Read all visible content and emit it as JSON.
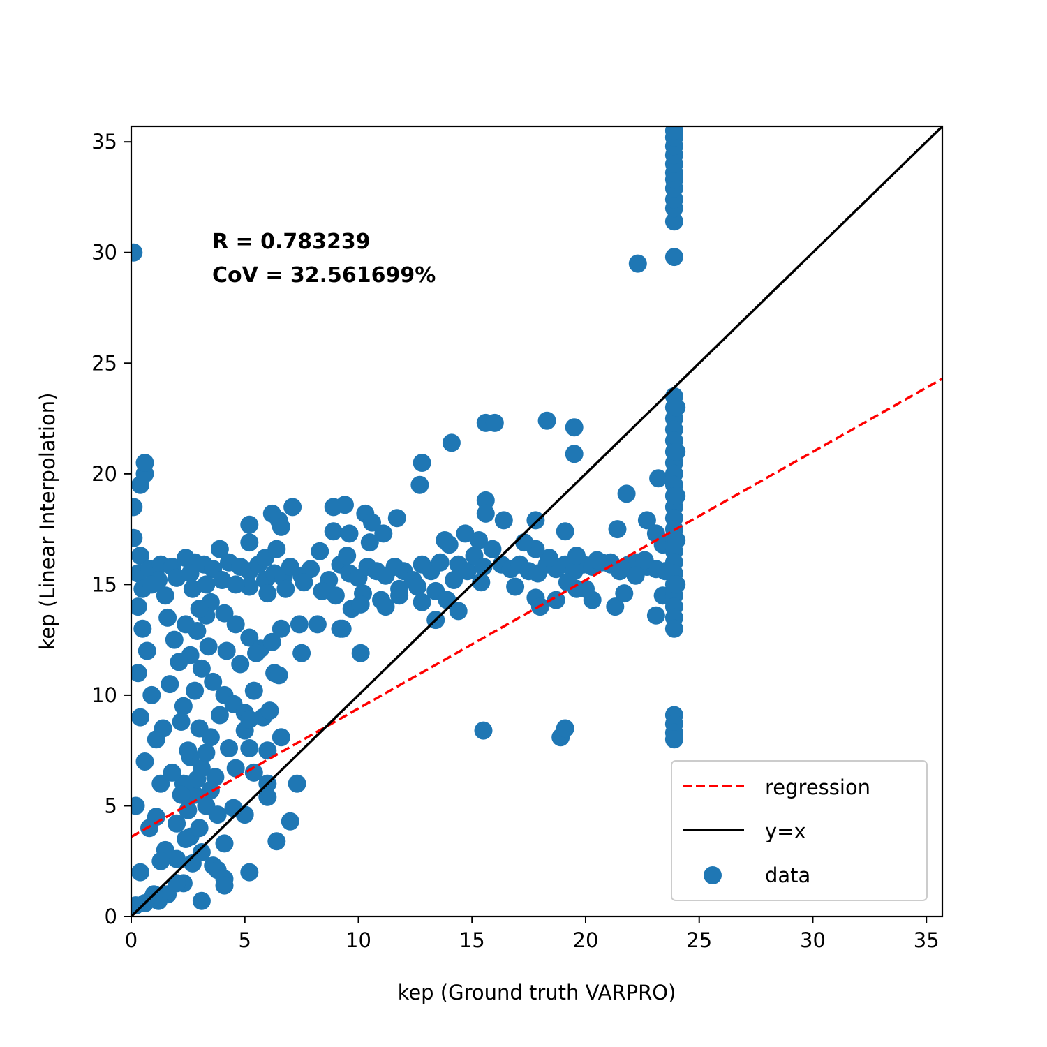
{
  "chart_data": {
    "type": "scatter",
    "title": "",
    "xlabel": "kep (Ground truth VARPRO)",
    "ylabel": "kep (Linear Interpolation)",
    "xlim": [
      0,
      35.7
    ],
    "ylim": [
      0,
      35.7
    ],
    "xticks": [
      0,
      5,
      10,
      15,
      20,
      25,
      30,
      35
    ],
    "yticks": [
      0,
      5,
      10,
      15,
      20,
      25,
      30,
      35
    ],
    "grid": false,
    "annotations": [
      "R = 0.783239",
      "CoV = 32.561699%"
    ],
    "legend": {
      "position": "lower right",
      "entries": [
        {
          "label": "regression",
          "style": "dashed-line",
          "color": "#ff0000"
        },
        {
          "label": "y=x",
          "style": "solid-line",
          "color": "#000000"
        },
        {
          "label": "data",
          "style": "marker",
          "color": "#1f77b4"
        }
      ]
    },
    "lines": [
      {
        "name": "regression",
        "color": "#ff0000",
        "dashed": true,
        "x": [
          0,
          35.7
        ],
        "y": [
          3.6,
          24.3
        ]
      },
      {
        "name": "y=x",
        "color": "#000000",
        "dashed": false,
        "x": [
          0,
          35.7
        ],
        "y": [
          0,
          35.7
        ]
      }
    ],
    "series": [
      {
        "name": "data",
        "color": "#1f77b4",
        "points": [
          [
            0.1,
            30.0
          ],
          [
            0.1,
            18.5
          ],
          [
            0.1,
            17.1
          ],
          [
            0.4,
            19.5
          ],
          [
            0.6,
            20.0
          ],
          [
            0.6,
            20.5
          ],
          [
            0.4,
            16.3
          ],
          [
            0.3,
            15.5
          ],
          [
            0.5,
            14.8
          ],
          [
            0.8,
            15.7
          ],
          [
            1.3,
            15.9
          ],
          [
            1.8,
            15.8
          ],
          [
            2.4,
            16.2
          ],
          [
            2.8,
            16.0
          ],
          [
            3.2,
            15.9
          ],
          [
            3.6,
            15.7
          ],
          [
            3.9,
            16.6
          ],
          [
            4.3,
            16.0
          ],
          [
            4.8,
            15.8
          ],
          [
            5.2,
            15.6
          ],
          [
            5.6,
            15.9
          ],
          [
            5.9,
            15.2
          ],
          [
            6.3,
            15.5
          ],
          [
            6.7,
            15.3
          ],
          [
            7.0,
            15.8
          ],
          [
            7.5,
            15.4
          ],
          [
            7.9,
            15.7
          ],
          [
            8.3,
            16.5
          ],
          [
            8.7,
            15.2
          ],
          [
            9.2,
            15.9
          ],
          [
            9.6,
            15.5
          ],
          [
            10.0,
            15.3
          ],
          [
            10.4,
            15.8
          ],
          [
            10.8,
            15.6
          ],
          [
            11.2,
            15.4
          ],
          [
            11.6,
            15.8
          ],
          [
            12.0,
            15.6
          ],
          [
            12.4,
            15.2
          ],
          [
            12.8,
            15.9
          ],
          [
            13.2,
            15.6
          ],
          [
            13.6,
            16.0
          ],
          [
            14.0,
            16.8
          ],
          [
            14.4,
            15.9
          ],
          [
            14.8,
            15.6
          ],
          [
            15.1,
            16.3
          ],
          [
            15.5,
            15.8
          ],
          [
            15.9,
            16.6
          ],
          [
            16.3,
            15.9
          ],
          [
            16.7,
            15.7
          ],
          [
            17.1,
            15.9
          ],
          [
            17.5,
            15.6
          ],
          [
            17.9,
            15.5
          ],
          [
            18.3,
            15.9
          ],
          [
            18.7,
            15.7
          ],
          [
            19.1,
            15.9
          ],
          [
            19.5,
            15.6
          ],
          [
            19.9,
            15.9
          ],
          [
            20.3,
            15.8
          ],
          [
            20.7,
            16.0
          ],
          [
            21.1,
            15.9
          ],
          [
            21.5,
            15.6
          ],
          [
            21.9,
            15.9
          ],
          [
            22.3,
            16.0
          ],
          [
            22.7,
            15.8
          ],
          [
            23.1,
            15.7
          ],
          [
            23.5,
            15.6
          ],
          [
            5.2,
            14.9
          ],
          [
            6.0,
            14.6
          ],
          [
            6.8,
            14.8
          ],
          [
            7.6,
            15.1
          ],
          [
            8.4,
            14.7
          ],
          [
            9.0,
            14.5
          ],
          [
            10.2,
            14.6
          ],
          [
            11.0,
            14.3
          ],
          [
            11.8,
            14.5
          ],
          [
            12.6,
            14.9
          ],
          [
            13.4,
            14.7
          ],
          [
            14.2,
            15.2
          ],
          [
            3.5,
            14.2
          ],
          [
            4.1,
            13.7
          ],
          [
            4.6,
            13.2
          ],
          [
            5.2,
            12.6
          ],
          [
            5.7,
            12.1
          ],
          [
            6.2,
            12.4
          ],
          [
            6.6,
            13.0
          ],
          [
            7.4,
            13.2
          ],
          [
            3.3,
            13.6
          ],
          [
            2.9,
            12.9
          ],
          [
            2.6,
            11.8
          ],
          [
            3.1,
            11.2
          ],
          [
            3.6,
            10.6
          ],
          [
            4.1,
            10.0
          ],
          [
            4.5,
            9.6
          ],
          [
            5.0,
            9.2
          ],
          [
            5.4,
            10.2
          ],
          [
            5.8,
            9.0
          ],
          [
            6.1,
            9.3
          ],
          [
            4.2,
            12.0
          ],
          [
            4.8,
            11.4
          ],
          [
            5.5,
            11.9
          ],
          [
            6.3,
            11.0
          ],
          [
            6.5,
            10.9
          ],
          [
            7.5,
            11.9
          ],
          [
            9.3,
            13.0
          ],
          [
            10.1,
            11.9
          ],
          [
            3.0,
            8.5
          ],
          [
            3.5,
            8.1
          ],
          [
            4.3,
            7.6
          ],
          [
            5.0,
            8.4
          ],
          [
            5.2,
            8.9
          ],
          [
            5.2,
            7.6
          ],
          [
            6.0,
            7.5
          ],
          [
            6.6,
            8.1
          ],
          [
            2.6,
            7.2
          ],
          [
            3.1,
            6.7
          ],
          [
            3.7,
            6.3
          ],
          [
            4.6,
            6.7
          ],
          [
            5.4,
            6.5
          ],
          [
            6.0,
            6.0
          ],
          [
            6.0,
            5.4
          ],
          [
            7.3,
            6.0
          ],
          [
            2.3,
            6.0
          ],
          [
            2.8,
            5.5
          ],
          [
            3.3,
            5.0
          ],
          [
            3.8,
            4.6
          ],
          [
            4.5,
            4.9
          ],
          [
            5.0,
            4.6
          ],
          [
            7.0,
            4.3
          ],
          [
            6.4,
            3.4
          ],
          [
            4.1,
            3.3
          ],
          [
            2.0,
            4.2
          ],
          [
            2.6,
            3.6
          ],
          [
            3.1,
            2.9
          ],
          [
            3.6,
            2.3
          ],
          [
            3.8,
            2.1
          ],
          [
            4.1,
            1.7
          ],
          [
            4.1,
            1.4
          ],
          [
            5.2,
            2.0
          ],
          [
            3.1,
            0.7
          ],
          [
            2.3,
            1.5
          ],
          [
            2.0,
            2.6
          ],
          [
            1.6,
            1.0
          ],
          [
            1.2,
            0.7
          ],
          [
            0.9,
            0.8
          ],
          [
            0.6,
            0.6
          ],
          [
            0.3,
            14.0
          ],
          [
            0.5,
            13.0
          ],
          [
            0.7,
            12.0
          ],
          [
            0.3,
            11.0
          ],
          [
            0.9,
            10.0
          ],
          [
            0.4,
            9.0
          ],
          [
            1.1,
            8.0
          ],
          [
            0.6,
            7.0
          ],
          [
            1.3,
            6.0
          ],
          [
            0.2,
            5.0
          ],
          [
            0.8,
            4.0
          ],
          [
            1.5,
            3.0
          ],
          [
            0.4,
            2.0
          ],
          [
            1.0,
            1.0
          ],
          [
            0.2,
            0.5
          ],
          [
            1.6,
            13.5
          ],
          [
            1.9,
            12.5
          ],
          [
            2.1,
            11.5
          ],
          [
            1.7,
            10.5
          ],
          [
            2.3,
            9.5
          ],
          [
            1.4,
            8.5
          ],
          [
            2.5,
            7.5
          ],
          [
            1.8,
            6.5
          ],
          [
            2.2,
            5.5
          ],
          [
            1.1,
            4.5
          ],
          [
            2.4,
            3.5
          ],
          [
            1.3,
            2.5
          ],
          [
            2.0,
            1.5
          ],
          [
            1.5,
            14.5
          ],
          [
            2.7,
            14.8
          ],
          [
            3.0,
            13.9
          ],
          [
            2.4,
            13.2
          ],
          [
            3.4,
            12.2
          ],
          [
            2.8,
            10.2
          ],
          [
            3.9,
            9.1
          ],
          [
            2.2,
            8.8
          ],
          [
            3.3,
            7.4
          ],
          [
            2.9,
            6.2
          ],
          [
            3.5,
            5.7
          ],
          [
            2.5,
            4.8
          ],
          [
            3.0,
            4.0
          ],
          [
            2.7,
            2.4
          ],
          [
            1.2,
            15.2
          ],
          [
            0.9,
            15.0
          ],
          [
            2.0,
            15.3
          ],
          [
            2.6,
            15.5
          ],
          [
            3.3,
            15.0
          ],
          [
            4.0,
            15.2
          ],
          [
            4.6,
            15.0
          ],
          [
            5.2,
            17.7
          ],
          [
            5.2,
            16.9
          ],
          [
            6.2,
            18.2
          ],
          [
            6.5,
            17.9
          ],
          [
            6.6,
            17.6
          ],
          [
            7.1,
            18.5
          ],
          [
            5.9,
            16.2
          ],
          [
            6.4,
            16.6
          ],
          [
            8.9,
            18.5
          ],
          [
            9.4,
            18.6
          ],
          [
            8.9,
            17.4
          ],
          [
            9.6,
            17.3
          ],
          [
            10.3,
            18.2
          ],
          [
            10.6,
            17.8
          ],
          [
            11.1,
            17.3
          ],
          [
            11.7,
            18.0
          ],
          [
            10.5,
            16.9
          ],
          [
            9.5,
            16.3
          ],
          [
            8.2,
            13.2
          ],
          [
            9.2,
            13.0
          ],
          [
            9.7,
            13.9
          ],
          [
            10.1,
            14.1
          ],
          [
            11.2,
            14.0
          ],
          [
            11.8,
            14.8
          ],
          [
            12.8,
            20.5
          ],
          [
            12.7,
            19.5
          ],
          [
            14.1,
            21.4
          ],
          [
            15.6,
            22.3
          ],
          [
            16.0,
            22.3
          ],
          [
            18.3,
            22.4
          ],
          [
            19.5,
            22.1
          ],
          [
            19.5,
            20.9
          ],
          [
            15.6,
            18.8
          ],
          [
            15.6,
            18.2
          ],
          [
            16.4,
            17.9
          ],
          [
            17.8,
            17.9
          ],
          [
            15.3,
            17.0
          ],
          [
            14.7,
            17.3
          ],
          [
            13.8,
            17.0
          ],
          [
            19.1,
            17.4
          ],
          [
            21.4,
            17.5
          ],
          [
            21.8,
            19.1
          ],
          [
            23.2,
            19.8
          ],
          [
            22.7,
            17.9
          ],
          [
            23.1,
            17.3
          ],
          [
            23.4,
            16.8
          ],
          [
            22.6,
            16.1
          ],
          [
            21.1,
            16.0
          ],
          [
            20.5,
            16.1
          ],
          [
            19.6,
            16.3
          ],
          [
            18.4,
            16.2
          ],
          [
            17.8,
            16.6
          ],
          [
            17.3,
            16.9
          ],
          [
            12.8,
            14.2
          ],
          [
            13.4,
            13.4
          ],
          [
            13.9,
            14.3
          ],
          [
            14.4,
            13.8
          ],
          [
            15.4,
            15.1
          ],
          [
            16.9,
            14.9
          ],
          [
            17.8,
            14.4
          ],
          [
            18.0,
            14.0
          ],
          [
            18.7,
            14.3
          ],
          [
            19.6,
            14.8
          ],
          [
            20.3,
            14.3
          ],
          [
            21.3,
            14.0
          ],
          [
            21.7,
            14.6
          ],
          [
            22.2,
            15.4
          ],
          [
            23.1,
            13.6
          ],
          [
            23.4,
            14.5
          ],
          [
            20.0,
            14.8
          ],
          [
            19.2,
            15.1
          ],
          [
            15.5,
            8.4
          ],
          [
            18.9,
            8.1
          ],
          [
            19.1,
            8.5
          ],
          [
            22.3,
            29.5
          ],
          [
            23.9,
            29.8
          ],
          [
            23.9,
            31.4
          ],
          [
            23.9,
            32.0
          ],
          [
            23.9,
            32.4
          ],
          [
            23.9,
            32.9
          ],
          [
            23.9,
            33.3
          ],
          [
            23.9,
            33.6
          ],
          [
            23.9,
            34.0
          ],
          [
            23.9,
            34.4
          ],
          [
            23.9,
            34.8
          ],
          [
            23.9,
            35.2
          ],
          [
            23.9,
            35.5
          ],
          [
            23.9,
            23.5
          ],
          [
            23.9,
            23.0
          ],
          [
            23.9,
            22.5
          ],
          [
            23.9,
            22.0
          ],
          [
            23.9,
            21.5
          ],
          [
            23.9,
            21.0
          ],
          [
            23.9,
            20.5
          ],
          [
            23.9,
            20.0
          ],
          [
            23.9,
            19.5
          ],
          [
            23.9,
            19.0
          ],
          [
            23.9,
            18.5
          ],
          [
            23.9,
            18.0
          ],
          [
            23.9,
            17.5
          ],
          [
            23.9,
            17.0
          ],
          [
            23.9,
            16.5
          ],
          [
            23.9,
            16.0
          ],
          [
            23.9,
            15.5
          ],
          [
            23.9,
            15.0
          ],
          [
            23.9,
            14.5
          ],
          [
            23.9,
            14.0
          ],
          [
            23.9,
            13.5
          ],
          [
            23.9,
            13.0
          ],
          [
            24.0,
            23.0
          ],
          [
            24.0,
            21.0
          ],
          [
            24.0,
            19.0
          ],
          [
            24.0,
            17.0
          ],
          [
            24.0,
            15.0
          ],
          [
            23.9,
            9.1
          ],
          [
            23.9,
            8.7
          ],
          [
            23.9,
            8.3
          ],
          [
            23.9,
            8.0
          ]
        ]
      }
    ]
  }
}
